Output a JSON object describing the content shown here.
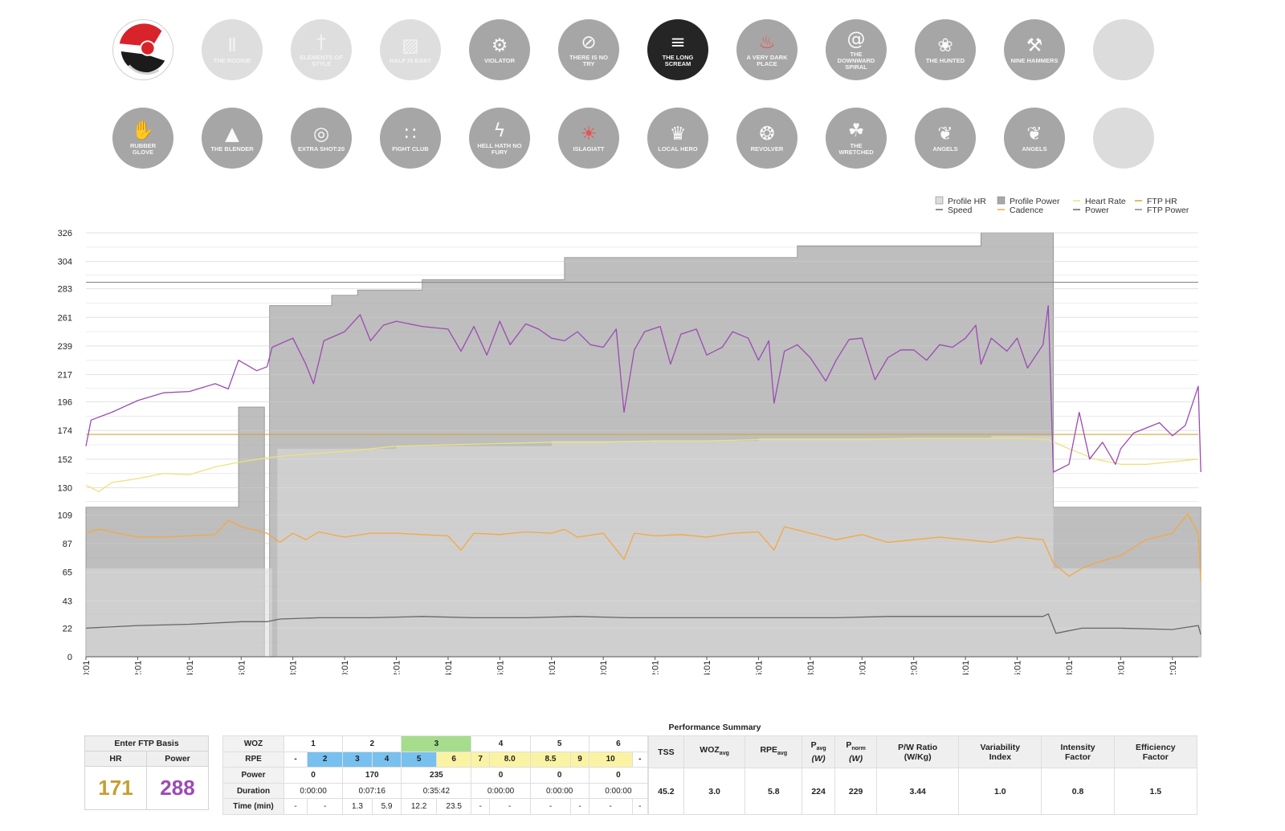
{
  "badges_row1": [
    {
      "label": "",
      "icon": "logo",
      "state": "logo"
    },
    {
      "label": "THE ROOKIE",
      "icon": "bars-icon",
      "state": "faded"
    },
    {
      "label": "ELEMENTS OF STYLE",
      "icon": "tie-icon",
      "state": "faded"
    },
    {
      "label": "HALF IS EASY",
      "icon": "glass-icon",
      "state": "faded"
    },
    {
      "label": "VIOLATOR",
      "icon": "wheel-icon",
      "state": "normal"
    },
    {
      "label": "THERE IS NO TRY",
      "icon": "no-icon",
      "state": "normal"
    },
    {
      "label": "THE LONG SCREAM",
      "icon": "scream-icon",
      "state": "active"
    },
    {
      "label": "A VERY DARK PLACE",
      "icon": "flame-icon",
      "state": "normal"
    },
    {
      "label": "THE DOWNWARD SPIRAL",
      "icon": "spiral-icon",
      "state": "normal"
    },
    {
      "label": "THE HUNTED",
      "icon": "wolf-icon",
      "state": "normal"
    },
    {
      "label": "NINE HAMMERS",
      "icon": "hammer-icon",
      "state": "normal"
    },
    {
      "label": "",
      "icon": "",
      "state": "blank"
    }
  ],
  "badges_row2": [
    {
      "label": "RUBBER GLOVE",
      "icon": "glove-icon",
      "state": "normal"
    },
    {
      "label": "THE BLENDER",
      "icon": "blender-icon",
      "state": "normal"
    },
    {
      "label": "EXTRA SHOT:20",
      "icon": "target-icon",
      "state": "normal"
    },
    {
      "label": "FIGHT CLUB",
      "icon": "knuckles-icon",
      "state": "normal"
    },
    {
      "label": "HELL HATH NO FURY",
      "icon": "lightning-icon",
      "state": "normal"
    },
    {
      "label": "ISLAGIATT",
      "icon": "bulb-icon",
      "state": "normal"
    },
    {
      "label": "LOCAL HERO",
      "icon": "crown-icon",
      "state": "normal"
    },
    {
      "label": "REVOLVER",
      "icon": "revolver-icon",
      "state": "normal"
    },
    {
      "label": "THE WRETCHED",
      "icon": "tree-icon",
      "state": "normal"
    },
    {
      "label": "ANGELS",
      "icon": "wings-icon",
      "state": "normal"
    },
    {
      "label": "ANGELS",
      "icon": "wings-icon",
      "state": "normal"
    },
    {
      "label": "",
      "icon": "",
      "state": "blank"
    }
  ],
  "chart_data": {
    "type": "line",
    "xlabel": "",
    "ylabel": "",
    "ylim": [
      0,
      326
    ],
    "yticks": [
      0,
      22,
      43,
      65,
      87,
      109,
      130,
      152,
      174,
      196,
      217,
      239,
      261,
      283,
      304,
      326
    ],
    "xticks": [
      "00:01",
      "02:01",
      "04:01",
      "06:01",
      "08:01",
      "10:01",
      "12:01",
      "14:01",
      "16:01",
      "18:01",
      "20:01",
      "22:01",
      "24:01",
      "26:01",
      "28:01",
      "30:01",
      "32:01",
      "34:01",
      "36:01",
      "38:01",
      "40:01",
      "42:01"
    ],
    "xlim_min": [
      0,
      43
    ],
    "grid": true,
    "legend_position": "top-right",
    "legend": [
      {
        "label": "Profile HR",
        "kind": "box",
        "color": "#dcdcdc"
      },
      {
        "label": "Profile Power",
        "kind": "box",
        "color": "#a8a8a8"
      },
      {
        "label": "Heart Rate",
        "kind": "line",
        "color": "#ede27c"
      },
      {
        "label": "FTP HR",
        "kind": "line",
        "color": "#d6a33c"
      },
      {
        "label": "Speed",
        "kind": "line",
        "color": "#666666"
      },
      {
        "label": "Cadence",
        "kind": "line",
        "color": "#f4a742"
      },
      {
        "label": "Power",
        "kind": "line",
        "color": "#666666"
      },
      {
        "label": "FTP Power",
        "kind": "line",
        "color": "#888888"
      }
    ],
    "series": [
      {
        "name": "Profile HR",
        "color": "#dcdcdc",
        "steps": [
          [
            0,
            68
          ],
          [
            7.2,
            0
          ],
          [
            7.4,
            160
          ],
          [
            12,
            162
          ],
          [
            18,
            166
          ],
          [
            26,
            168
          ],
          [
            35,
            170
          ],
          [
            37.4,
            68
          ],
          [
            43.1,
            68
          ]
        ]
      },
      {
        "name": "Profile Power",
        "color": "#a8a8a8",
        "steps": [
          [
            0,
            115
          ],
          [
            5.9,
            115
          ],
          [
            5.9,
            192
          ],
          [
            6.9,
            192
          ],
          [
            6.9,
            0
          ],
          [
            7.1,
            0
          ],
          [
            7.1,
            270
          ],
          [
            9.5,
            278
          ],
          [
            10.5,
            282
          ],
          [
            13,
            290
          ],
          [
            18.5,
            307
          ],
          [
            27.5,
            316
          ],
          [
            34.6,
            326
          ],
          [
            37.4,
            326
          ],
          [
            37.4,
            115
          ],
          [
            43.1,
            115
          ]
        ]
      },
      {
        "name": "Heart Rate",
        "color": "#ede27c",
        "points": [
          [
            0,
            132
          ],
          [
            0.5,
            127
          ],
          [
            1,
            134
          ],
          [
            2,
            137
          ],
          [
            3,
            141
          ],
          [
            4,
            140
          ],
          [
            5,
            146
          ],
          [
            6,
            150
          ],
          [
            7,
            153
          ],
          [
            8,
            155
          ],
          [
            10,
            158
          ],
          [
            12,
            162
          ],
          [
            14,
            163
          ],
          [
            16,
            164
          ],
          [
            18,
            165
          ],
          [
            20,
            165
          ],
          [
            22,
            166
          ],
          [
            24,
            166
          ],
          [
            26,
            167
          ],
          [
            28,
            167
          ],
          [
            30,
            167
          ],
          [
            32,
            168
          ],
          [
            34,
            168
          ],
          [
            36,
            168
          ],
          [
            37.2,
            167
          ],
          [
            38,
            160
          ],
          [
            39,
            152
          ],
          [
            40,
            148
          ],
          [
            41,
            148
          ],
          [
            42,
            150
          ],
          [
            43,
            152
          ]
        ]
      },
      {
        "name": "Power",
        "color": "#9b4bb3",
        "points": [
          [
            0,
            162
          ],
          [
            0.2,
            182
          ],
          [
            1,
            188
          ],
          [
            2,
            197
          ],
          [
            3,
            203
          ],
          [
            4,
            204
          ],
          [
            5,
            210
          ],
          [
            5.5,
            206
          ],
          [
            5.9,
            228
          ],
          [
            6.6,
            220
          ],
          [
            7,
            223
          ],
          [
            7.2,
            238
          ],
          [
            8,
            245
          ],
          [
            8.5,
            225
          ],
          [
            8.8,
            210
          ],
          [
            9.2,
            243
          ],
          [
            10,
            250
          ],
          [
            10.6,
            263
          ],
          [
            11,
            243
          ],
          [
            11.5,
            255
          ],
          [
            12,
            258
          ],
          [
            13,
            254
          ],
          [
            14,
            252
          ],
          [
            14.5,
            235
          ],
          [
            15,
            254
          ],
          [
            15.5,
            232
          ],
          [
            16,
            258
          ],
          [
            16.4,
            240
          ],
          [
            17,
            256
          ],
          [
            17.5,
            252
          ],
          [
            18,
            245
          ],
          [
            18.5,
            243
          ],
          [
            19,
            250
          ],
          [
            19.5,
            240
          ],
          [
            20,
            238
          ],
          [
            20.5,
            252
          ],
          [
            20.8,
            188
          ],
          [
            21.2,
            236
          ],
          [
            21.6,
            250
          ],
          [
            22.2,
            254
          ],
          [
            22.6,
            225
          ],
          [
            23,
            248
          ],
          [
            23.6,
            252
          ],
          [
            24,
            232
          ],
          [
            24.6,
            238
          ],
          [
            25,
            250
          ],
          [
            25.6,
            245
          ],
          [
            26,
            228
          ],
          [
            26.4,
            243
          ],
          [
            26.6,
            195
          ],
          [
            27,
            235
          ],
          [
            27.5,
            240
          ],
          [
            28,
            230
          ],
          [
            28.6,
            212
          ],
          [
            29,
            228
          ],
          [
            29.5,
            244
          ],
          [
            30,
            245
          ],
          [
            30.5,
            213
          ],
          [
            31,
            230
          ],
          [
            31.5,
            236
          ],
          [
            32,
            236
          ],
          [
            32.5,
            228
          ],
          [
            33,
            240
          ],
          [
            33.5,
            238
          ],
          [
            34,
            245
          ],
          [
            34.4,
            255
          ],
          [
            34.6,
            225
          ],
          [
            35,
            245
          ],
          [
            35.6,
            235
          ],
          [
            36,
            245
          ],
          [
            36.4,
            222
          ],
          [
            37,
            240
          ],
          [
            37.2,
            270
          ],
          [
            37.4,
            142
          ],
          [
            38,
            148
          ],
          [
            38.4,
            188
          ],
          [
            38.8,
            152
          ],
          [
            39.3,
            165
          ],
          [
            39.8,
            148
          ],
          [
            40,
            160
          ],
          [
            40.5,
            172
          ],
          [
            41,
            176
          ],
          [
            41.5,
            180
          ],
          [
            42,
            170
          ],
          [
            42.5,
            178
          ],
          [
            43,
            208
          ],
          [
            43.1,
            142
          ]
        ]
      },
      {
        "name": "Cadence",
        "color": "#f4a742",
        "points": [
          [
            0,
            95
          ],
          [
            0.5,
            98
          ],
          [
            1,
            96
          ],
          [
            2,
            92
          ],
          [
            3,
            92
          ],
          [
            4,
            93
          ],
          [
            5,
            94
          ],
          [
            5.5,
            105
          ],
          [
            6,
            100
          ],
          [
            7,
            95
          ],
          [
            7.5,
            88
          ],
          [
            8,
            95
          ],
          [
            8.5,
            90
          ],
          [
            9,
            96
          ],
          [
            10,
            92
          ],
          [
            11,
            95
          ],
          [
            12,
            95
          ],
          [
            13,
            94
          ],
          [
            14,
            93
          ],
          [
            14.5,
            82
          ],
          [
            15,
            95
          ],
          [
            16,
            94
          ],
          [
            17,
            96
          ],
          [
            18,
            95
          ],
          [
            18.5,
            98
          ],
          [
            19,
            92
          ],
          [
            20,
            95
          ],
          [
            20.8,
            75
          ],
          [
            21.2,
            95
          ],
          [
            22,
            93
          ],
          [
            23,
            94
          ],
          [
            24,
            92
          ],
          [
            25,
            95
          ],
          [
            26,
            96
          ],
          [
            26.6,
            82
          ],
          [
            27,
            100
          ],
          [
            28,
            95
          ],
          [
            29,
            90
          ],
          [
            30,
            94
          ],
          [
            31,
            88
          ],
          [
            32,
            90
          ],
          [
            33,
            92
          ],
          [
            34,
            90
          ],
          [
            35,
            88
          ],
          [
            36,
            92
          ],
          [
            37,
            90
          ],
          [
            37.4,
            72
          ],
          [
            38,
            62
          ],
          [
            38.5,
            68
          ],
          [
            39,
            72
          ],
          [
            40,
            78
          ],
          [
            41,
            90
          ],
          [
            42,
            95
          ],
          [
            42.6,
            110
          ],
          [
            43,
            95
          ],
          [
            43.1,
            58
          ]
        ]
      },
      {
        "name": "Speed",
        "color": "#666666",
        "points": [
          [
            0,
            22
          ],
          [
            2,
            24
          ],
          [
            4,
            25
          ],
          [
            6,
            27
          ],
          [
            7,
            27
          ],
          [
            7.5,
            29
          ],
          [
            9,
            30
          ],
          [
            11,
            30
          ],
          [
            13,
            31
          ],
          [
            15,
            30
          ],
          [
            17,
            30
          ],
          [
            19,
            31
          ],
          [
            21,
            30
          ],
          [
            23,
            30
          ],
          [
            25,
            30
          ],
          [
            27,
            30
          ],
          [
            29,
            30
          ],
          [
            31,
            31
          ],
          [
            33,
            31
          ],
          [
            35,
            31
          ],
          [
            37,
            31
          ],
          [
            37.2,
            33
          ],
          [
            37.5,
            18
          ],
          [
            38.5,
            22
          ],
          [
            40,
            22
          ],
          [
            42,
            21
          ],
          [
            43,
            24
          ],
          [
            43.1,
            17
          ]
        ]
      },
      {
        "name": "FTP HR",
        "color": "#d6a33c",
        "constant": 171
      },
      {
        "name": "FTP Power",
        "color": "#888888",
        "constant": 288
      }
    ]
  },
  "ftp": {
    "title": "Enter FTP Basis",
    "hr_label": "HR",
    "power_label": "Power",
    "hr_value": "171",
    "power_value": "288"
  },
  "woz": {
    "woz_label": "WOZ",
    "rpe_label": "RPE",
    "power_label": "Power",
    "duration_label": "Duration",
    "time_label": "Time (min)",
    "woz_values": [
      "1",
      "2",
      "3",
      "4",
      "5",
      "6"
    ],
    "rpe_values": [
      "-",
      "2",
      "3",
      "4",
      "5",
      "6",
      "7",
      "8.0",
      "8.5",
      "9",
      "10",
      "-"
    ],
    "power_values": [
      "0",
      "170",
      "235",
      "0",
      "0",
      "0"
    ],
    "duration_values": [
      "0:00:00",
      "0:07:16",
      "0:35:42",
      "0:00:00",
      "0:00:00",
      "0:00:00"
    ],
    "time_values": [
      "-",
      "-",
      "1.3",
      "5.9",
      "12.2",
      "23.5",
      "-",
      "-",
      "-",
      "-",
      "-",
      "-"
    ]
  },
  "summary": {
    "title": "Performance Summary",
    "headers": [
      {
        "main": "TSS",
        "sub": "",
        "extra": ""
      },
      {
        "main": "WOZ",
        "sub": "avg",
        "extra": ""
      },
      {
        "main": "RPE",
        "sub": "avg",
        "extra": ""
      },
      {
        "main": "P",
        "sub": "avg",
        "extra": "(W)"
      },
      {
        "main": "P",
        "sub": "norm",
        "extra": "(W)"
      },
      {
        "main": "P/W Ratio",
        "sub": "",
        "extra": "(W/Kg)"
      },
      {
        "main": "Variability",
        "sub": "",
        "extra": "Index"
      },
      {
        "main": "Intensity",
        "sub": "",
        "extra": "Factor"
      },
      {
        "main": "Efficiency",
        "sub": "",
        "extra": "Factor"
      }
    ],
    "values": [
      "45.2",
      "3.0",
      "5.8",
      "224",
      "229",
      "3.44",
      "1.0",
      "0.8",
      "1.5"
    ]
  }
}
